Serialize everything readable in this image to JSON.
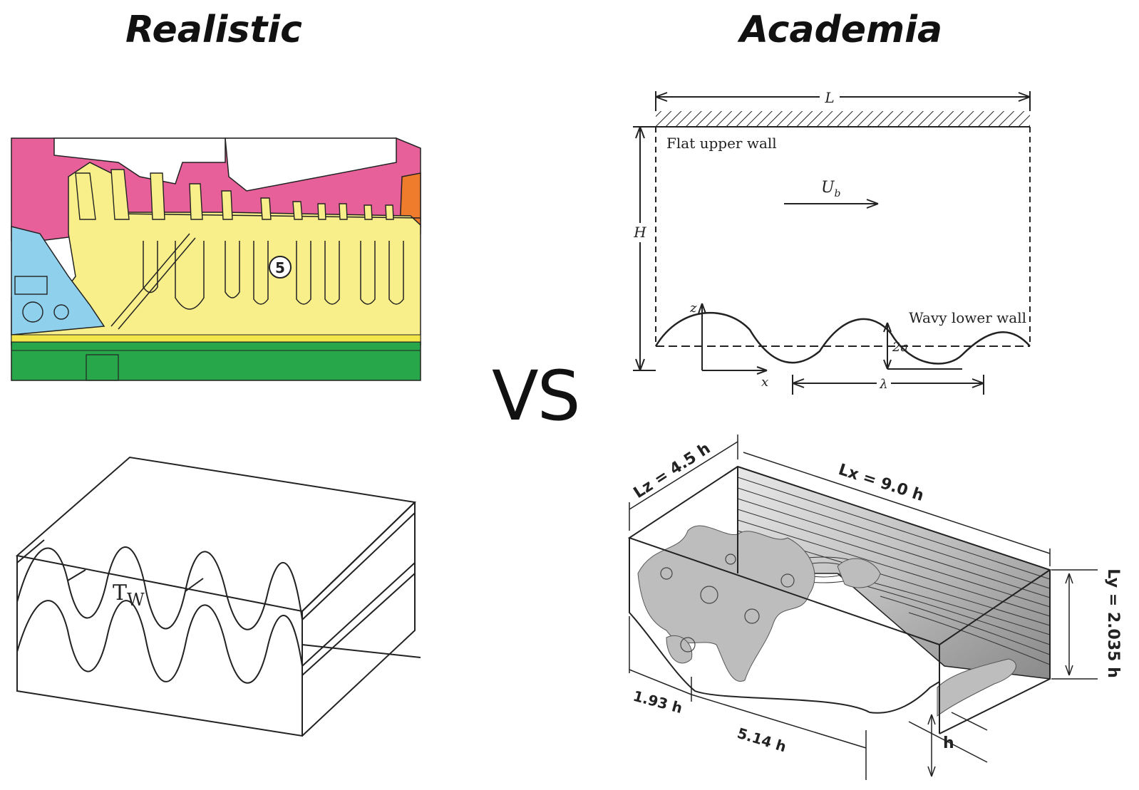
{
  "headings": {
    "left": "Realistic",
    "right": "Academia"
  },
  "vs": "VS",
  "turbine": {
    "marker": "5",
    "colors": {
      "casing": "#e8609a",
      "rotor": "#f8ef8a",
      "inlet": "#8fd0ec",
      "shaft": "#27a64a",
      "exhaust": "#ef7b2c"
    }
  },
  "wavy_block": {
    "label_main": "T",
    "label_sub": "W"
  },
  "wavy_channel": {
    "length_label": "L",
    "height_label": "H",
    "upper_wall": "Flat upper wall",
    "lower_wall": "Wavy lower wall",
    "velocity_main": "U",
    "velocity_sub": "b",
    "z_axis": "z",
    "x_axis": "x",
    "amplitude": "2a",
    "wavelength": "λ"
  },
  "hill_channel": {
    "lz": "Lz = 4.5 h",
    "lx": "Lx = 9.0 h",
    "ly": "Ly = 2.035 h",
    "d1": "1.93 h",
    "d2": "5.14 h",
    "h": "h"
  }
}
